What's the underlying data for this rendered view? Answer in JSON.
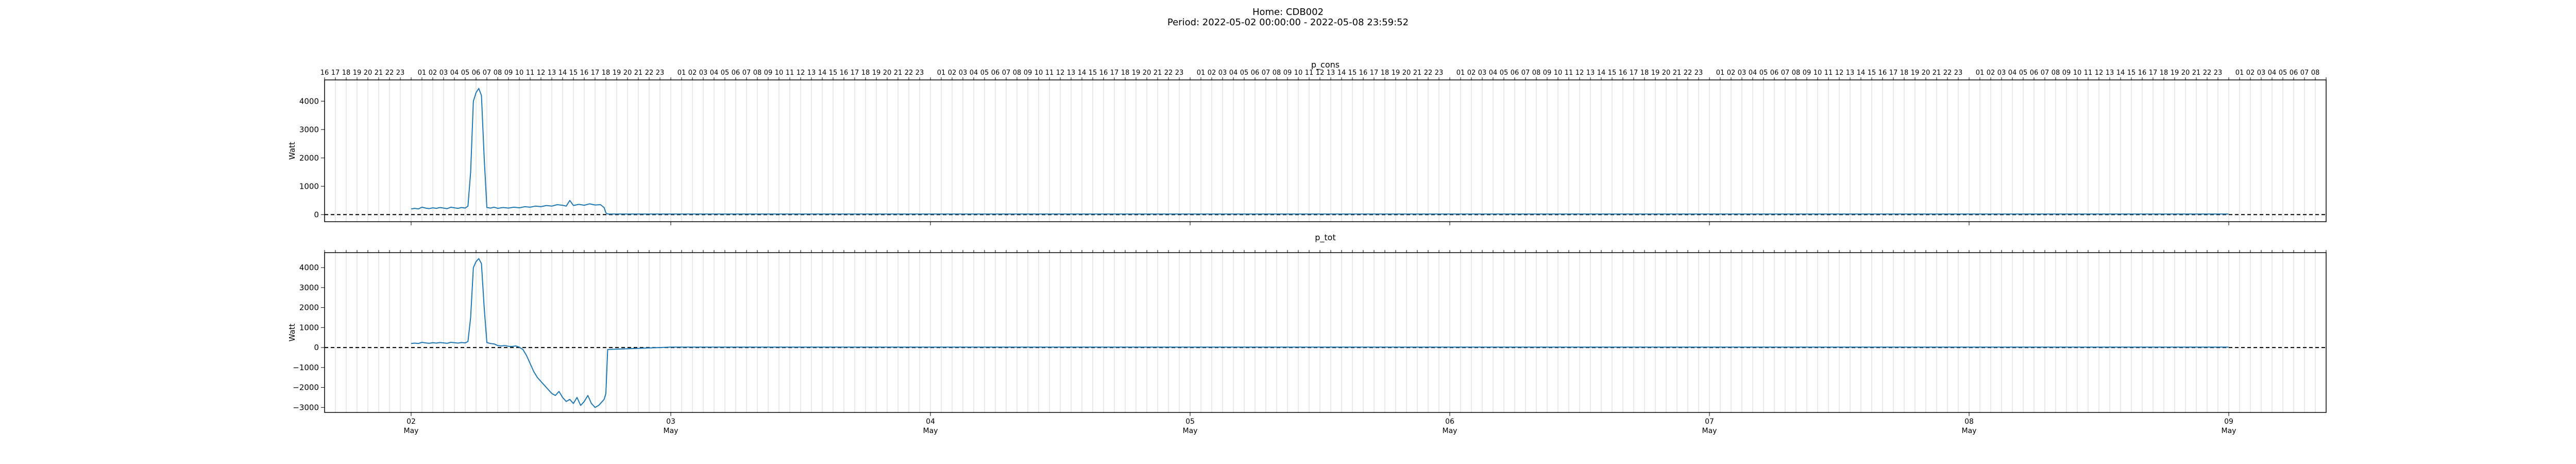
{
  "header": {
    "home": "Home: CDB002",
    "period": "Period: 2022-05-02 00:00:00 - 2022-05-08 23:59:52"
  },
  "chart_data": [
    {
      "type": "line",
      "title": "p_cons",
      "ylabel": "Watt",
      "xlabel": "",
      "ylim": [
        -250,
        4750
      ],
      "yticks": [
        0,
        1000,
        2000,
        3000,
        4000
      ],
      "grid": "vertical hourly lines",
      "reference_line": {
        "y": 0,
        "style": "dashed"
      },
      "x_range": [
        "2022-05-01 16:00",
        "2022-05-09 09:00"
      ],
      "series_color": "#1f77b4",
      "series": [
        {
          "name": "",
          "x": [
            "2022-05-02 00:00",
            "2022-05-02 00:20",
            "2022-05-02 00:40",
            "2022-05-02 01:00",
            "2022-05-02 01:20",
            "2022-05-02 01:40",
            "2022-05-02 02:00",
            "2022-05-02 02:20",
            "2022-05-02 02:40",
            "2022-05-02 03:00",
            "2022-05-02 03:20",
            "2022-05-02 03:40",
            "2022-05-02 04:00",
            "2022-05-02 04:20",
            "2022-05-02 04:40",
            "2022-05-02 05:00",
            "2022-05-02 05:15",
            "2022-05-02 05:30",
            "2022-05-02 05:45",
            "2022-05-02 06:00",
            "2022-05-02 06:15",
            "2022-05-02 06:30",
            "2022-05-02 06:45",
            "2022-05-02 07:00",
            "2022-05-02 07:20",
            "2022-05-02 07:40",
            "2022-05-02 08:00",
            "2022-05-02 08:30",
            "2022-05-02 09:00",
            "2022-05-02 09:30",
            "2022-05-02 10:00",
            "2022-05-02 10:30",
            "2022-05-02 11:00",
            "2022-05-02 11:30",
            "2022-05-02 12:00",
            "2022-05-02 12:30",
            "2022-05-02 13:00",
            "2022-05-02 13:30",
            "2022-05-02 14:00",
            "2022-05-02 14:20",
            "2022-05-02 14:40",
            "2022-05-02 15:00",
            "2022-05-02 15:30",
            "2022-05-02 16:00",
            "2022-05-02 16:30",
            "2022-05-02 17:00",
            "2022-05-02 17:30",
            "2022-05-02 17:50",
            "2022-05-02 18:00",
            "2022-05-02 18:10",
            "2022-05-03 00:00",
            "2022-05-04 00:00",
            "2022-05-05 00:00",
            "2022-05-06 00:00",
            "2022-05-07 00:00",
            "2022-05-08 00:00",
            "2022-05-08 23:59"
          ],
          "y": [
            200,
            220,
            200,
            260,
            230,
            210,
            240,
            220,
            250,
            230,
            210,
            260,
            240,
            220,
            250,
            230,
            300,
            1500,
            4000,
            4300,
            4450,
            4200,
            2000,
            250,
            230,
            260,
            220,
            250,
            230,
            260,
            240,
            280,
            260,
            300,
            280,
            320,
            300,
            350,
            330,
            300,
            500,
            320,
            360,
            330,
            380,
            340,
            350,
            250,
            60,
            20,
            20,
            20,
            20,
            20,
            20,
            20,
            20
          ]
        }
      ]
    },
    {
      "type": "line",
      "title": "p_tot",
      "ylabel": "Watt",
      "xlabel": "",
      "ylim": [
        -3250,
        4750
      ],
      "yticks": [
        -3000,
        -2000,
        -1000,
        0,
        1000,
        2000,
        3000,
        4000
      ],
      "grid": "vertical hourly lines",
      "reference_line": {
        "y": 0,
        "style": "dashed"
      },
      "x_range": [
        "2022-05-01 16:00",
        "2022-05-09 09:00"
      ],
      "series_color": "#1f77b4",
      "series": [
        {
          "name": "",
          "x": [
            "2022-05-02 00:00",
            "2022-05-02 00:20",
            "2022-05-02 00:40",
            "2022-05-02 01:00",
            "2022-05-02 01:20",
            "2022-05-02 01:40",
            "2022-05-02 02:00",
            "2022-05-02 02:20",
            "2022-05-02 02:40",
            "2022-05-02 03:00",
            "2022-05-02 03:20",
            "2022-05-02 03:40",
            "2022-05-02 04:00",
            "2022-05-02 04:20",
            "2022-05-02 04:40",
            "2022-05-02 05:00",
            "2022-05-02 05:15",
            "2022-05-02 05:30",
            "2022-05-02 05:45",
            "2022-05-02 06:00",
            "2022-05-02 06:15",
            "2022-05-02 06:30",
            "2022-05-02 06:45",
            "2022-05-02 07:00",
            "2022-05-02 07:20",
            "2022-05-02 07:40",
            "2022-05-02 08:00",
            "2022-05-02 08:20",
            "2022-05-02 08:40",
            "2022-05-02 09:00",
            "2022-05-02 09:20",
            "2022-05-02 09:40",
            "2022-05-02 10:00",
            "2022-05-02 10:20",
            "2022-05-02 10:40",
            "2022-05-02 11:00",
            "2022-05-02 11:20",
            "2022-05-02 11:40",
            "2022-05-02 12:00",
            "2022-05-02 12:20",
            "2022-05-02 12:40",
            "2022-05-02 13:00",
            "2022-05-02 13:20",
            "2022-05-02 13:40",
            "2022-05-02 14:00",
            "2022-05-02 14:20",
            "2022-05-02 14:40",
            "2022-05-02 15:00",
            "2022-05-02 15:20",
            "2022-05-02 15:40",
            "2022-05-02 16:00",
            "2022-05-02 16:20",
            "2022-05-02 16:40",
            "2022-05-02 17:00",
            "2022-05-02 17:20",
            "2022-05-02 17:40",
            "2022-05-02 17:50",
            "2022-05-02 18:00",
            "2022-05-02 18:10",
            "2022-05-03 00:00",
            "2022-05-04 00:00",
            "2022-05-05 00:00",
            "2022-05-06 00:00",
            "2022-05-07 00:00",
            "2022-05-08 00:00",
            "2022-05-08 23:59"
          ],
          "y": [
            200,
            220,
            200,
            260,
            230,
            210,
            240,
            220,
            250,
            230,
            210,
            260,
            240,
            220,
            250,
            230,
            300,
            1500,
            4000,
            4300,
            4450,
            4200,
            2000,
            250,
            200,
            180,
            100,
            80,
            100,
            60,
            50,
            80,
            20,
            -100,
            -400,
            -800,
            -1200,
            -1500,
            -1700,
            -1900,
            -2100,
            -2300,
            -2400,
            -2200,
            -2500,
            -2700,
            -2600,
            -2800,
            -2500,
            -2900,
            -2700,
            -2400,
            -2800,
            -3000,
            -2900,
            -2700,
            -2600,
            -2300,
            -100,
            20,
            20,
            20,
            20,
            20,
            20,
            20
          ]
        }
      ]
    }
  ],
  "axes": {
    "top_hour_labels": [
      "16",
      "17",
      "18",
      "19",
      "20",
      "21",
      "22",
      "23",
      "",
      "01",
      "02",
      "03",
      "04",
      "05",
      "06",
      "07",
      "08",
      "09",
      "10",
      "11",
      "12",
      "13",
      "14",
      "15",
      "16",
      "17",
      "18",
      "19",
      "20",
      "21",
      "22",
      "23",
      "",
      "01",
      "02",
      "03",
      "04",
      "05",
      "06",
      "07",
      "08",
      "09",
      "10",
      "11",
      "12",
      "13",
      "14",
      "15",
      "16",
      "17",
      "18",
      "19",
      "20",
      "21",
      "22",
      "23",
      "",
      "01",
      "02",
      "03",
      "04",
      "05",
      "06",
      "07",
      "08",
      "09",
      "10",
      "11",
      "12",
      "13",
      "14",
      "15",
      "16",
      "17",
      "18",
      "19",
      "20",
      "21",
      "22",
      "23",
      "",
      "01",
      "02",
      "03",
      "04",
      "05",
      "06",
      "07",
      "08",
      "09",
      "10",
      "11",
      "12",
      "13",
      "14",
      "15",
      "16",
      "17",
      "18",
      "19",
      "20",
      "21",
      "22",
      "23",
      "",
      "01",
      "02",
      "03",
      "04",
      "05",
      "06",
      "07",
      "08",
      "09",
      "10",
      "11",
      "12",
      "13",
      "14",
      "15",
      "16",
      "17",
      "18",
      "19",
      "20",
      "21",
      "22",
      "23",
      "",
      "01",
      "02",
      "03",
      "04",
      "05",
      "06",
      "07",
      "08",
      "09",
      "10",
      "11",
      "12",
      "13",
      "14",
      "15",
      "16",
      "17",
      "18",
      "19",
      "20",
      "21",
      "22",
      "23",
      "",
      "01",
      "02",
      "03",
      "04",
      "05",
      "06",
      "07",
      "08",
      "09",
      "10",
      "11",
      "12",
      "13",
      "14",
      "15",
      "16",
      "17",
      "18",
      "19",
      "20",
      "21",
      "22",
      "23",
      "",
      "01",
      "02",
      "03",
      "04",
      "05",
      "06",
      "07",
      "08"
    ],
    "bottom_day_ticks": [
      {
        "day": "02",
        "month": "May",
        "t": "2022-05-02 00:00"
      },
      {
        "day": "03",
        "month": "May",
        "t": "2022-05-03 00:00"
      },
      {
        "day": "04",
        "month": "May",
        "t": "2022-05-04 00:00"
      },
      {
        "day": "05",
        "month": "May",
        "t": "2022-05-05 00:00"
      },
      {
        "day": "06",
        "month": "May",
        "t": "2022-05-06 00:00"
      },
      {
        "day": "07",
        "month": "May",
        "t": "2022-05-07 00:00"
      },
      {
        "day": "08",
        "month": "May",
        "t": "2022-05-08 00:00"
      },
      {
        "day": "09",
        "month": "May",
        "t": "2022-05-09 00:00"
      }
    ]
  }
}
